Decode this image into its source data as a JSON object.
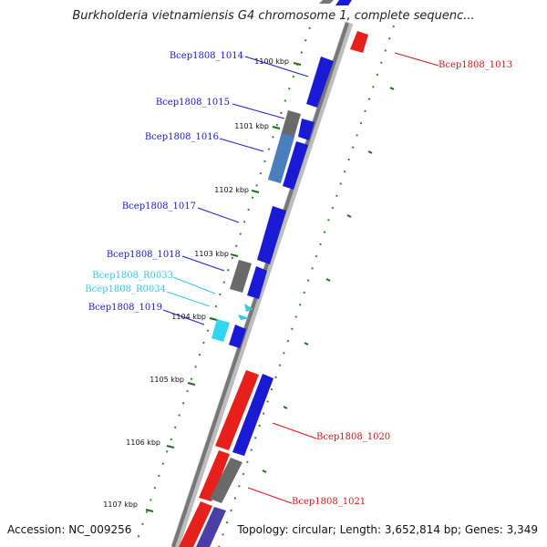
{
  "title": "Burkholderia vietnamiensis G4 chromosome 1, complete sequenc...",
  "footer": {
    "accession": "Accession: NC_009256",
    "stats": "Topology: circular; Length: 3,652,814 bp; Genes: 3,349"
  },
  "colors": {
    "forward": "#1a1ad4",
    "reverse": "#e8201c",
    "rna": "#33d6f0",
    "pseudo": "#6a6a6a",
    "tick": "#2f8a2f",
    "backbone": "#8a8a8a"
  },
  "ticks": [
    "1100 kbp",
    "1101 kbp",
    "1102 kbp",
    "1103 kbp",
    "1104 kbp",
    "1105 kbp",
    "1106 kbp",
    "1107 kbp"
  ],
  "labels": {
    "left": [
      {
        "text": "Bcep1808_1014",
        "color": "#1a1ad4"
      },
      {
        "text": "Bcep1808_1015",
        "color": "#1a1ad4"
      },
      {
        "text": "Bcep1808_1016",
        "color": "#1a1ad4"
      },
      {
        "text": "Bcep1808_1017",
        "color": "#1a1ad4"
      },
      {
        "text": "Bcep1808_1018",
        "color": "#1a1ad4"
      },
      {
        "text": "Bcep1808_R0033",
        "color": "#33c8e8"
      },
      {
        "text": "Bcep1808_R0034",
        "color": "#33c8e8"
      },
      {
        "text": "Bcep1808_1019",
        "color": "#1a1ad4"
      }
    ],
    "right": [
      {
        "text": "Bcep1808_1013",
        "color": "#d01818"
      },
      {
        "text": "Bcep1808_1020",
        "color": "#d01818"
      },
      {
        "text": "Bcep1808_1021",
        "color": "#d01818"
      }
    ]
  }
}
